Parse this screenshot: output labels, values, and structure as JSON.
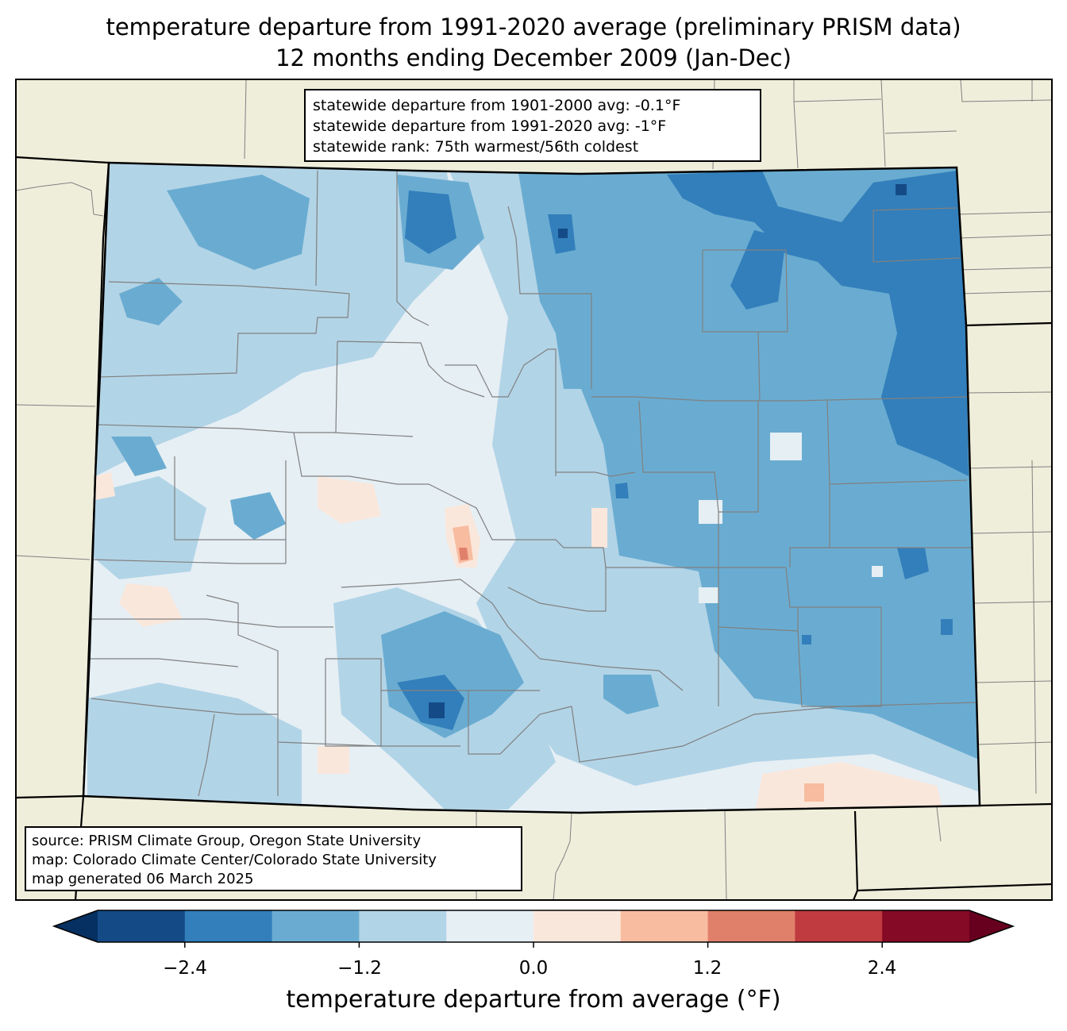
{
  "title": {
    "line1": "temperature departure from 1991-2020 average (preliminary PRISM data)",
    "line2": "12 months ending December 2009 (Jan-Dec)"
  },
  "stats_box": {
    "line1": "statewide departure from 1901-2000 avg: -0.1°F",
    "line2": "statewide departure from 1991-2020 avg: -1°F",
    "line3": "statewide rank: 75th warmest/56th coldest"
  },
  "source_box": {
    "line1": "source: PRISM Climate Group, Oregon State University",
    "line2": "map: Colorado Climate Center/Colorado State University",
    "line3": "map generated 06 March 2025"
  },
  "colorbar": {
    "label": "temperature departure from average (°F)",
    "ticks": [
      "−2.4",
      "−1.2",
      "0.0",
      "1.2",
      "2.4"
    ],
    "colors": [
      "#053061",
      "#144b87",
      "#327fbb",
      "#6aacd1",
      "#b2d4e7",
      "#e6eff4",
      "#fae7dc",
      "#f8bca0",
      "#e0806a",
      "#c03b3f",
      "#850a25",
      "#67001f"
    ]
  },
  "map_colors": {
    "land_outside": "#efeedb",
    "background_state": "#e6eff4",
    "border": "#000000",
    "county_lines": "#808080"
  }
}
